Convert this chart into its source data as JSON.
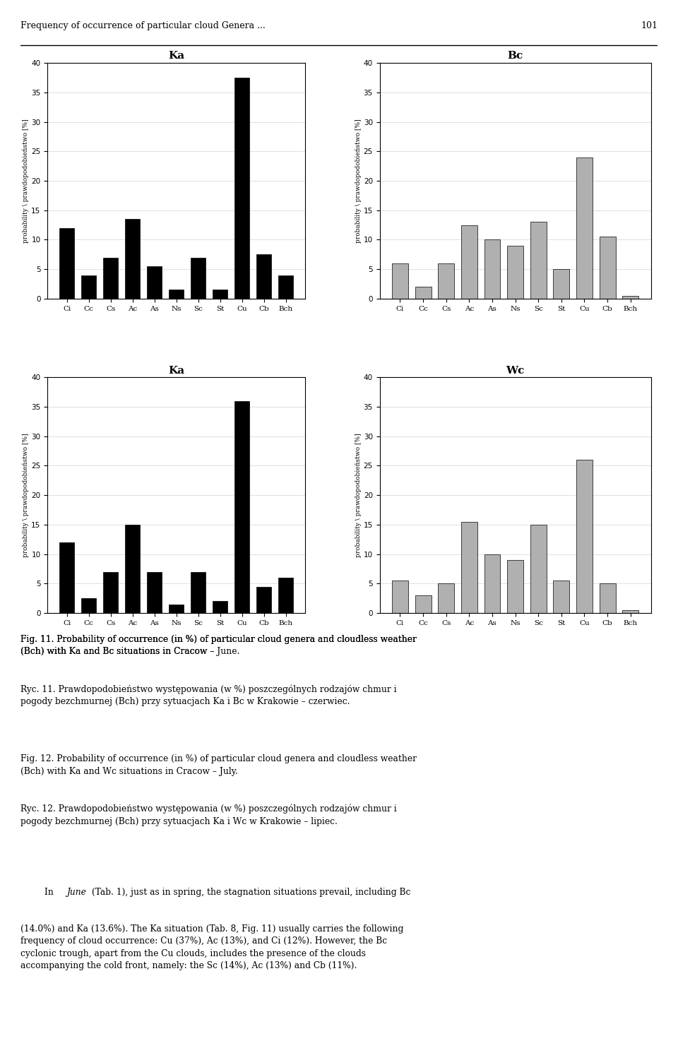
{
  "categories": [
    "Ci",
    "Cc",
    "Cs",
    "Ac",
    "As",
    "Ns",
    "Sc",
    "St",
    "Cu",
    "Cb",
    "Bch"
  ],
  "fig11_ka_values": [
    12,
    4,
    7,
    13.5,
    5.5,
    1.5,
    7,
    1.5,
    37.5,
    7.5,
    4
  ],
  "fig11_bc_values": [
    6,
    2,
    6,
    12.5,
    10,
    9,
    13,
    5,
    24,
    10.5,
    0.5
  ],
  "fig12_ka_values": [
    12,
    2.5,
    7,
    15,
    7,
    1.5,
    7,
    2,
    36,
    4.5,
    6
  ],
  "fig12_wc_values": [
    5.5,
    3,
    5,
    15.5,
    10,
    9,
    15,
    5.5,
    26,
    5,
    0.5
  ],
  "fig11_ka_title": "Ka",
  "fig11_bc_title": "Bc",
  "fig12_ka_title": "Ka",
  "fig12_wc_title": "Wc",
  "black_color": "#000000",
  "gray_color": "#b0b0b0",
  "ylabel_text": "probability \\ prawdopodobieństwo [%]",
  "ylim": [
    0,
    40
  ],
  "yticks": [
    0,
    5,
    10,
    15,
    20,
    25,
    30,
    35,
    40
  ],
  "header_text": "Frequency of occurrence of particular cloud Genera ...",
  "page_num": "101"
}
